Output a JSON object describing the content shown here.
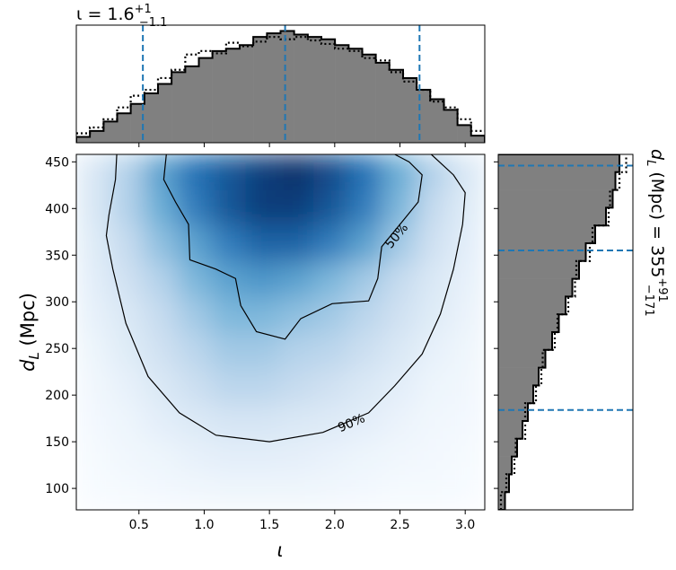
{
  "chart_data": {
    "type": "joint",
    "title_x": {
      "main": "ι = 1.6",
      "sup": "+1",
      "sub": "−1.1"
    },
    "title_y": {
      "main": "d",
      "sub_l": "L",
      "rest": " (Mpc) = 355",
      "sup": "+91",
      "sub": "−171"
    },
    "xlabel": "ι",
    "ylabel": {
      "main": "d",
      "sub": "L",
      "rest": " (Mpc)"
    },
    "xlim": [
      0.02,
      3.15
    ],
    "ylim": [
      77,
      458
    ],
    "xticks": [
      0.5,
      {
        "value": 1,
        "label": "1.0"
      },
      1.5,
      {
        "value": 2,
        "label": "2.0"
      },
      2.5,
      {
        "value": 3,
        "label": "3.0"
      }
    ],
    "yticks": [
      100,
      150,
      200,
      250,
      300,
      350,
      400,
      450
    ],
    "colormap": [
      "#f7fbff",
      "#c6dbef",
      "#6baed6",
      "#2171b5",
      "#08306b"
    ],
    "density": {
      "x_bins": [
        0.02,
        0.28,
        0.54,
        0.8,
        1.06,
        1.32,
        1.58,
        1.84,
        2.1,
        2.37,
        2.63,
        2.89,
        3.15
      ],
      "y_bins": [
        77,
        115,
        153,
        191,
        229,
        267,
        305,
        343,
        382,
        420,
        458
      ],
      "values": [
        [
          0,
          0.01,
          0.02,
          0.03,
          0.04,
          0.04,
          0.04,
          0.03,
          0.02,
          0.01,
          0.01,
          0
        ],
        [
          0.01,
          0.03,
          0.05,
          0.08,
          0.1,
          0.1,
          0.09,
          0.07,
          0.05,
          0.03,
          0.02,
          0.01
        ],
        [
          0.02,
          0.05,
          0.1,
          0.14,
          0.17,
          0.17,
          0.15,
          0.13,
          0.1,
          0.06,
          0.03,
          0.02
        ],
        [
          0.03,
          0.08,
          0.15,
          0.22,
          0.28,
          0.28,
          0.25,
          0.2,
          0.15,
          0.1,
          0.05,
          0.03
        ],
        [
          0.05,
          0.12,
          0.2,
          0.28,
          0.35,
          0.35,
          0.3,
          0.28,
          0.22,
          0.15,
          0.08,
          0.04
        ],
        [
          0.08,
          0.15,
          0.25,
          0.35,
          0.45,
          0.45,
          0.4,
          0.35,
          0.28,
          0.2,
          0.12,
          0.06
        ],
        [
          0.1,
          0.2,
          0.3,
          0.45,
          0.55,
          0.6,
          0.55,
          0.45,
          0.35,
          0.25,
          0.15,
          0.08
        ],
        [
          0.12,
          0.25,
          0.4,
          0.55,
          0.7,
          0.8,
          0.8,
          0.7,
          0.55,
          0.35,
          0.2,
          0.1
        ],
        [
          0.15,
          0.3,
          0.5,
          0.7,
          0.85,
          0.95,
          0.95,
          0.85,
          0.7,
          0.45,
          0.25,
          0.12
        ],
        [
          0.15,
          0.3,
          0.55,
          0.75,
          0.85,
          0.95,
          1,
          0.9,
          0.75,
          0.5,
          0.3,
          0.15
        ]
      ]
    },
    "contours": [
      {
        "label": "50%",
        "x": [
          0.71,
          0.69,
          0.78,
          0.88,
          0.89,
          1.09,
          1.24,
          1.28,
          1.4,
          1.62,
          1.74,
          1.98,
          2.26,
          2.33,
          2.36,
          2.5,
          2.64,
          2.67,
          2.57,
          2.46
        ],
        "y": [
          458,
          431,
          407,
          383,
          345,
          335,
          325,
          296,
          268,
          260,
          282,
          298,
          301,
          325,
          359,
          383,
          407,
          436,
          450,
          458
        ]
      },
      {
        "label": "90%",
        "x": [
          0.33,
          0.32,
          0.27,
          0.25,
          0.3,
          0.4,
          0.57,
          0.81,
          1.09,
          1.5,
          1.91,
          2.26,
          2.46,
          2.67,
          2.81,
          2.91,
          2.98,
          3.0,
          2.91,
          2.74
        ],
        "y": [
          458,
          431,
          393,
          371,
          335,
          277,
          220,
          181,
          157,
          150,
          160,
          181,
          210,
          244,
          287,
          335,
          383,
          417,
          436,
          458
        ]
      }
    ],
    "marg_x": {
      "bins": [
        0.02,
        0.124,
        0.229,
        0.333,
        0.437,
        0.542,
        0.646,
        0.75,
        0.855,
        0.959,
        1.063,
        1.168,
        1.272,
        1.376,
        1.481,
        1.585,
        1.689,
        1.794,
        1.898,
        2.002,
        2.107,
        2.211,
        2.315,
        2.419,
        2.524,
        2.628,
        2.732,
        2.837,
        2.941,
        3.045,
        3.15
      ],
      "ylim": [
        0,
        1
      ],
      "fill": "#808080",
      "quantiles": [
        0.53,
        1.62,
        2.65
      ],
      "quantile_color": "#1f77b4",
      "series": [
        {
          "style": "solid",
          "values": [
            0.05,
            0.1,
            0.18,
            0.25,
            0.33,
            0.42,
            0.5,
            0.6,
            0.65,
            0.72,
            0.78,
            0.8,
            0.83,
            0.9,
            0.93,
            0.95,
            0.92,
            0.9,
            0.88,
            0.83,
            0.8,
            0.75,
            0.68,
            0.62,
            0.55,
            0.45,
            0.37,
            0.28,
            0.15,
            0.06
          ]
        },
        {
          "style": "dotted",
          "values": [
            0.08,
            0.13,
            0.2,
            0.3,
            0.4,
            0.45,
            0.55,
            0.62,
            0.75,
            0.78,
            0.76,
            0.85,
            0.82,
            0.86,
            0.9,
            0.88,
            0.9,
            0.87,
            0.84,
            0.8,
            0.78,
            0.72,
            0.7,
            0.6,
            0.52,
            0.45,
            0.35,
            0.3,
            0.2,
            0.1
          ]
        }
      ]
    },
    "marg_y": {
      "bins": [
        77,
        96.05,
        115.1,
        134.15,
        153.2,
        172.25,
        191.3,
        210.35,
        229.4,
        248.45,
        267.5,
        286.55,
        305.6,
        324.65,
        343.7,
        362.75,
        381.8,
        400.85,
        419.9,
        438.95,
        458
      ],
      "xlim": [
        0,
        1
      ],
      "fill": "#808080",
      "quantiles": [
        184,
        355,
        446
      ],
      "quantile_color": "#1f77b4",
      "series": [
        {
          "style": "solid",
          "values": [
            0.05,
            0.08,
            0.1,
            0.14,
            0.18,
            0.22,
            0.26,
            0.3,
            0.35,
            0.4,
            0.45,
            0.5,
            0.55,
            0.6,
            0.65,
            0.72,
            0.8,
            0.85,
            0.87,
            0.9
          ]
        },
        {
          "style": "dotted",
          "values": [
            0.02,
            0.06,
            0.12,
            0.13,
            0.2,
            0.2,
            0.28,
            0.32,
            0.33,
            0.42,
            0.44,
            0.52,
            0.57,
            0.58,
            0.68,
            0.7,
            0.82,
            0.83,
            0.9,
            0.95
          ]
        }
      ]
    }
  }
}
